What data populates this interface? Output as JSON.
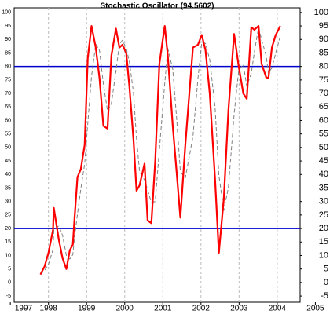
{
  "chart_data": {
    "type": "line",
    "title": "Stochastic Oscillator (94.5602)",
    "x": [
      1997.79,
      1997.9,
      1998.0,
      1998.12,
      1998.14,
      1998.27,
      1998.37,
      1998.47,
      1998.56,
      1998.64,
      1998.68,
      1998.76,
      1998.85,
      1998.95,
      1999.03,
      1999.13,
      1999.24,
      1999.34,
      1999.44,
      1999.55,
      1999.65,
      1999.77,
      1999.86,
      1999.94,
      2000.04,
      2000.12,
      2000.23,
      2000.31,
      2000.39,
      2000.52,
      2000.6,
      2000.7,
      2000.8,
      2000.91,
      2001.05,
      2001.13,
      2001.26,
      2001.36,
      2001.46,
      2001.59,
      2001.79,
      2001.92,
      2002.02,
      2002.12,
      2002.23,
      2002.37,
      2002.47,
      2002.6,
      2002.72,
      2002.87,
      2002.99,
      2003.11,
      2003.2,
      2003.32,
      2003.4,
      2003.51,
      2003.59,
      2003.71,
      2003.77,
      2003.86,
      2003.96,
      2004.08
    ],
    "series": [
      {
        "color": "#ff0000",
        "values": [
          3,
          6,
          11,
          19.5,
          27.6,
          16,
          9,
          5,
          12,
          14,
          23,
          39,
          42,
          51,
          83,
          95,
          87,
          75.6,
          58,
          57,
          84,
          94,
          87,
          88,
          85,
          73,
          53,
          34,
          36,
          44,
          23,
          22,
          45,
          81,
          95,
          84,
          58,
          41,
          24,
          51,
          87,
          88,
          91.6,
          86,
          70,
          38,
          11,
          31,
          64,
          92,
          80,
          70,
          68,
          94.5,
          93.6,
          95,
          81,
          76,
          75.6,
          87,
          91.6,
          95
        ]
      },
      {
        "color": "#808080",
        "dashed": true,
        "values": [
          3,
          4.5,
          6.7,
          12.2,
          19.4,
          21,
          17.5,
          10,
          8.7,
          10.3,
          16.3,
          25.3,
          34.7,
          44,
          58.7,
          76.3,
          88.3,
          85.9,
          73.5,
          63.5,
          66.3,
          78.3,
          88.3,
          89.7,
          86.7,
          82,
          70.3,
          53.3,
          41,
          38,
          34.3,
          29.7,
          30,
          49.3,
          73.7,
          86.7,
          79,
          61,
          41,
          38.7,
          54,
          75.3,
          88.9,
          88.5,
          82.5,
          64.7,
          39.7,
          26.7,
          35.3,
          62.3,
          78.7,
          80.7,
          72.7,
          77.5,
          85.4,
          94.4,
          89.9,
          84,
          77.5,
          79.5,
          84.9,
          91.2
        ]
      }
    ],
    "reference_lines": [
      80,
      20
    ],
    "reference_color": "#0000cc",
    "xlim": [
      1997.1,
      2004.6
    ],
    "xticks": [
      1997,
      1998,
      1999,
      2000,
      2001,
      2002,
      2003,
      2004,
      2005
    ],
    "ylim": [
      -7.3,
      101.7
    ],
    "yticks": [
      -5,
      0,
      5,
      10,
      15,
      20,
      25,
      30,
      35,
      40,
      45,
      50,
      55,
      60,
      65,
      70,
      75,
      80,
      85,
      90,
      95,
      100
    ],
    "grid": true
  }
}
